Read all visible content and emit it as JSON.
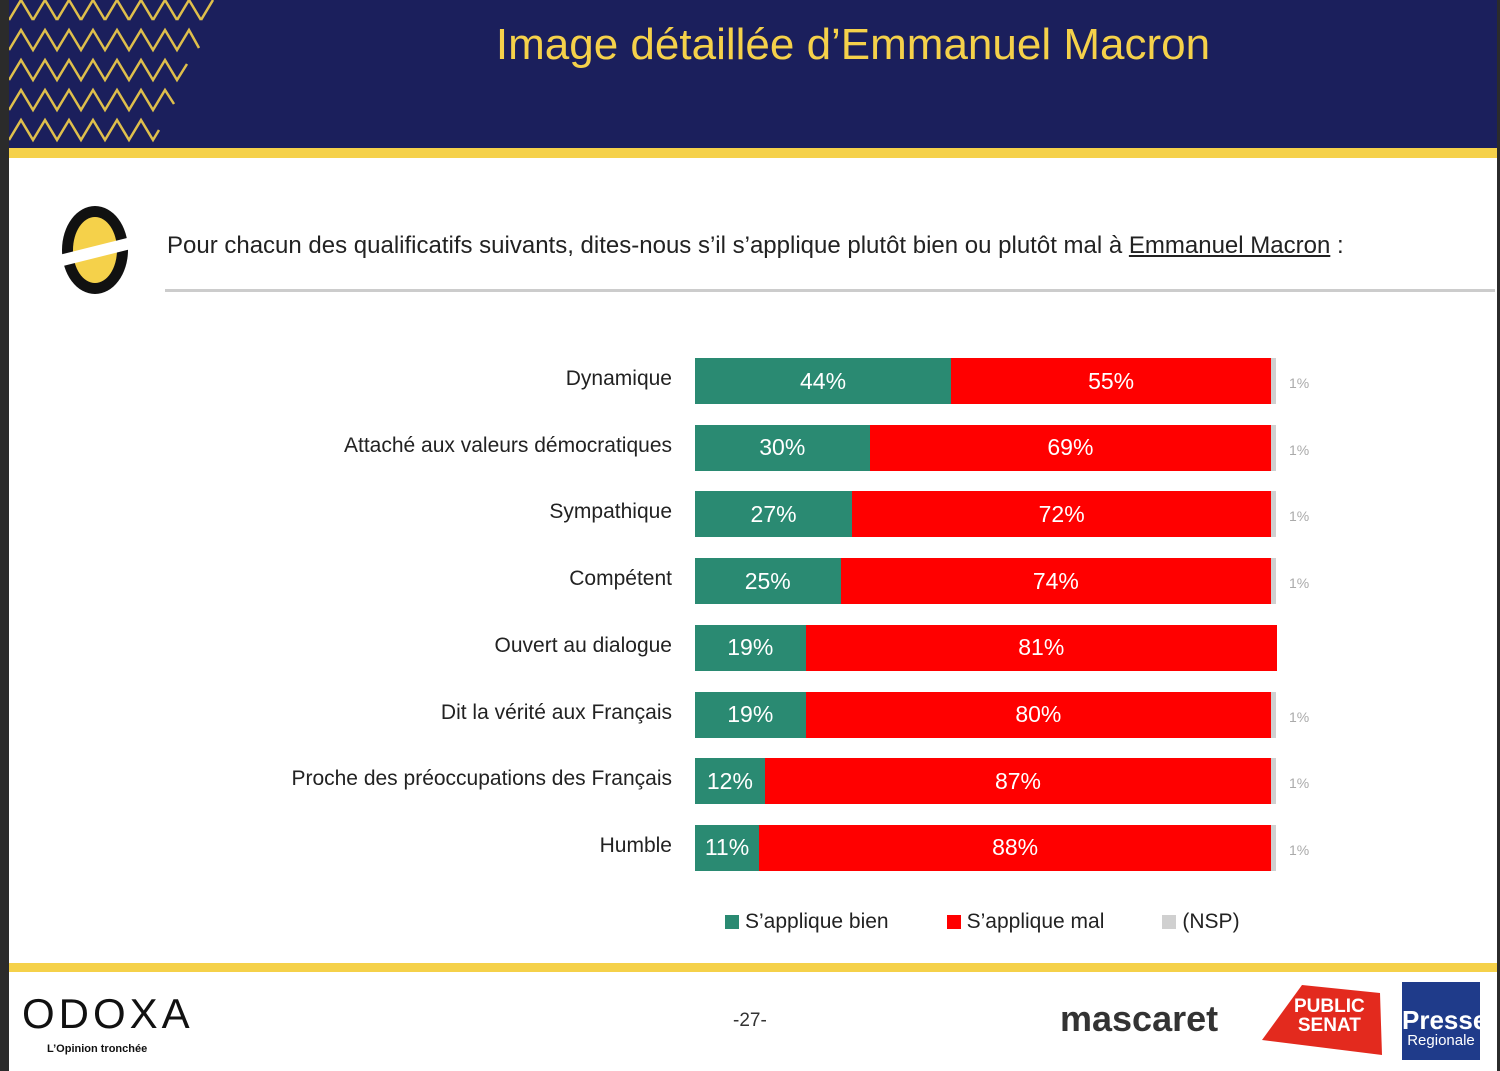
{
  "header": {
    "title": "Image détaillée d’Emmanuel Macron"
  },
  "question": {
    "text": "Pour chacun des qualificatifs suivants, dites-nous s’il s’applique plutôt bien ou plutôt mal à ",
    "subject": "Emmanuel Macron",
    "suffix": " :"
  },
  "colors": {
    "bien": "#2a8a72",
    "mal": "#ff0000",
    "nsp": "#d0d0d0",
    "navy": "#1b1f5c",
    "yellow": "#f5d14a"
  },
  "chart_data": {
    "type": "bar",
    "stacked": true,
    "orientation": "horizontal",
    "categories": [
      "Dynamique",
      "Attaché aux valeurs démocratiques",
      "Sympathique",
      "Compétent",
      "Ouvert au dialogue",
      "Dit la vérité aux Français",
      "Proche des préoccupations des Français",
      "Humble"
    ],
    "series": [
      {
        "name": "S’applique bien",
        "values": [
          44,
          30,
          27,
          25,
          19,
          19,
          12,
          11
        ]
      },
      {
        "name": "S’applique mal",
        "values": [
          55,
          69,
          72,
          74,
          81,
          80,
          87,
          88
        ]
      },
      {
        "name": "(NSP)",
        "values": [
          1,
          1,
          1,
          1,
          null,
          1,
          1,
          1
        ]
      }
    ],
    "unit": "%",
    "legend": "bottom"
  },
  "footer": {
    "page": "-27-",
    "odoxa": "ODOXA",
    "odoxa_tagline": "L’Opinion tronchée",
    "mascaret": "mascaret",
    "public_senat": [
      "PUBLIC",
      "SENAT"
    ],
    "presse": [
      "Presse",
      "Regionale"
    ]
  }
}
